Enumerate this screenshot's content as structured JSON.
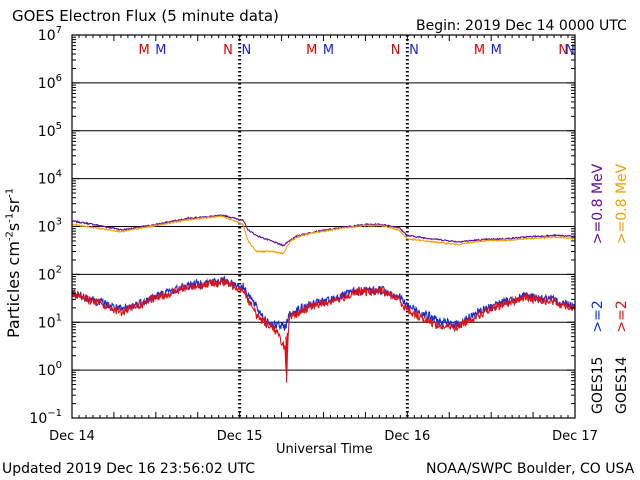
{
  "header": {
    "title": "GOES Electron Flux (5 minute data)",
    "begin": "Begin: 2019 Dec 14 0000 UTC"
  },
  "footer": {
    "updated": "Updated 2019 Dec 16 23:56:02 UTC",
    "source": "NOAA/SWPC Boulder, CO USA"
  },
  "chart_data": {
    "type": "line",
    "title": "GOES Electron Flux (5 minute data)",
    "xlabel": "Universal Time",
    "ylabel": "Particles cm-2s-1sr-1",
    "x_unit": "days since 2019 Dec 14 0000 UTC",
    "xlim": [
      0,
      3
    ],
    "ylim_log10": [
      -1,
      7
    ],
    "y_scale": "log",
    "x_ticks": [
      {
        "x": 0,
        "label": "Dec 14"
      },
      {
        "x": 1,
        "label": "Dec 15"
      },
      {
        "x": 2,
        "label": "Dec 16"
      },
      {
        "x": 3,
        "label": "Dec 17"
      }
    ],
    "y_ticks": [
      {
        "exp": 7,
        "label": "10",
        "sup": "7"
      },
      {
        "exp": 6,
        "label": "10",
        "sup": "6"
      },
      {
        "exp": 5,
        "label": "10",
        "sup": "5"
      },
      {
        "exp": 4,
        "label": "10",
        "sup": "4"
      },
      {
        "exp": 3,
        "label": "10",
        "sup": "3"
      },
      {
        "exp": 2,
        "label": "10",
        "sup": "2"
      },
      {
        "exp": 1,
        "label": "10",
        "sup": "1"
      },
      {
        "exp": 0,
        "label": "10",
        "sup": "0"
      },
      {
        "exp": -1,
        "label": "10",
        "sup": "−1"
      }
    ],
    "grid": "horizontal lines at each decade",
    "threshold": {
      "value": 1000,
      "style": "dashed"
    },
    "markers": [
      {
        "x": 0.43,
        "label": "M",
        "color": "#e00000"
      },
      {
        "x": 0.53,
        "label": "M",
        "color": "#2020e0"
      },
      {
        "x": 0.93,
        "label": "N",
        "color": "#e00000"
      },
      {
        "x": 1.04,
        "label": "N",
        "color": "#2020e0"
      },
      {
        "x": 1.43,
        "label": "M",
        "color": "#e00000"
      },
      {
        "x": 1.53,
        "label": "M",
        "color": "#2020e0"
      },
      {
        "x": 1.93,
        "label": "N",
        "color": "#e00000"
      },
      {
        "x": 2.04,
        "label": "N",
        "color": "#2020e0"
      },
      {
        "x": 2.43,
        "label": "M",
        "color": "#e00000"
      },
      {
        "x": 2.53,
        "label": "M",
        "color": "#2020e0"
      },
      {
        "x": 2.93,
        "label": "N",
        "color": "#e00000"
      },
      {
        "x": 3.04,
        "label": "N",
        "color": "#2020e0"
      }
    ],
    "series": [
      {
        "name": "GOES15 >=0.8 MeV",
        "color": "#6010a0",
        "noise": 0.015,
        "points": [
          [
            0,
            1300
          ],
          [
            0.1,
            1150
          ],
          [
            0.3,
            850
          ],
          [
            0.5,
            1100
          ],
          [
            0.7,
            1500
          ],
          [
            0.9,
            1700
          ],
          [
            1.02,
            1350
          ],
          [
            1.05,
            850
          ],
          [
            1.1,
            650
          ],
          [
            1.2,
            480
          ],
          [
            1.26,
            400
          ],
          [
            1.3,
            520
          ],
          [
            1.35,
            650
          ],
          [
            1.45,
            780
          ],
          [
            1.55,
            880
          ],
          [
            1.65,
            1000
          ],
          [
            1.75,
            1100
          ],
          [
            1.85,
            1100
          ],
          [
            1.95,
            950
          ],
          [
            2.0,
            650
          ],
          [
            2.1,
            580
          ],
          [
            2.3,
            480
          ],
          [
            2.45,
            530
          ],
          [
            2.6,
            560
          ],
          [
            2.75,
            620
          ],
          [
            2.9,
            650
          ],
          [
            3.0,
            620
          ]
        ]
      },
      {
        "name": "GOES14 >=0.8 MeV",
        "color": "#f0a000",
        "noise": 0.015,
        "points": [
          [
            0,
            1100
          ],
          [
            0.1,
            980
          ],
          [
            0.3,
            780
          ],
          [
            0.5,
            1050
          ],
          [
            0.7,
            1400
          ],
          [
            0.9,
            1650
          ],
          [
            1.02,
            1100
          ],
          [
            1.05,
            500
          ],
          [
            1.1,
            300
          ],
          [
            1.2,
            300
          ],
          [
            1.26,
            270
          ],
          [
            1.3,
            480
          ],
          [
            1.35,
            620
          ],
          [
            1.45,
            750
          ],
          [
            1.55,
            850
          ],
          [
            1.65,
            950
          ],
          [
            1.75,
            1050
          ],
          [
            1.85,
            1050
          ],
          [
            1.95,
            850
          ],
          [
            2.0,
            550
          ],
          [
            2.1,
            500
          ],
          [
            2.3,
            420
          ],
          [
            2.45,
            500
          ],
          [
            2.6,
            520
          ],
          [
            2.75,
            570
          ],
          [
            2.9,
            600
          ],
          [
            3.0,
            550
          ]
        ]
      },
      {
        "name": "GOES15 >=2 MeV",
        "color": "#1030e0",
        "noise": 0.09,
        "points": [
          [
            0,
            40
          ],
          [
            0.1,
            32
          ],
          [
            0.3,
            18
          ],
          [
            0.5,
            35
          ],
          [
            0.7,
            60
          ],
          [
            0.9,
            75
          ],
          [
            1.02,
            55
          ],
          [
            1.05,
            40
          ],
          [
            1.1,
            20
          ],
          [
            1.15,
            12
          ],
          [
            1.2,
            9
          ],
          [
            1.27,
            8
          ],
          [
            1.3,
            15
          ],
          [
            1.4,
            22
          ],
          [
            1.55,
            30
          ],
          [
            1.7,
            45
          ],
          [
            1.85,
            48
          ],
          [
            1.95,
            35
          ],
          [
            2.0,
            22
          ],
          [
            2.1,
            15
          ],
          [
            2.2,
            10
          ],
          [
            2.3,
            9
          ],
          [
            2.4,
            15
          ],
          [
            2.55,
            25
          ],
          [
            2.7,
            35
          ],
          [
            2.85,
            30
          ],
          [
            3.0,
            22
          ]
        ]
      },
      {
        "name": "GOES14 >=2 MeV",
        "color": "#e01010",
        "noise": 0.09,
        "points": [
          [
            0,
            42
          ],
          [
            0.1,
            30
          ],
          [
            0.3,
            16
          ],
          [
            0.5,
            32
          ],
          [
            0.7,
            55
          ],
          [
            0.9,
            70
          ],
          [
            1.02,
            50
          ],
          [
            1.05,
            30
          ],
          [
            1.1,
            14
          ],
          [
            1.15,
            10
          ],
          [
            1.2,
            8
          ],
          [
            1.27,
            3
          ],
          [
            1.28,
            0.55
          ],
          [
            1.29,
            7
          ],
          [
            1.3,
            12
          ],
          [
            1.4,
            20
          ],
          [
            1.55,
            28
          ],
          [
            1.7,
            42
          ],
          [
            1.85,
            45
          ],
          [
            1.95,
            30
          ],
          [
            2.0,
            18
          ],
          [
            2.1,
            12
          ],
          [
            2.2,
            8
          ],
          [
            2.3,
            8
          ],
          [
            2.4,
            13
          ],
          [
            2.55,
            22
          ],
          [
            2.7,
            33
          ],
          [
            2.85,
            28
          ],
          [
            3.0,
            20
          ]
        ]
      }
    ],
    "legend": {
      "position": "right",
      "entries": [
        {
          "satellite": "GOES15",
          "items": [
            {
              "text": ">=2",
              "color": "#1030e0"
            },
            {
              "text": ">=0.8 MeV",
              "color": "#6010a0"
            }
          ]
        },
        {
          "satellite": "GOES14",
          "items": [
            {
              "text": ">=2",
              "color": "#e01010"
            },
            {
              "text": ">=0.8 MeV",
              "color": "#f0a000"
            }
          ]
        }
      ]
    }
  }
}
